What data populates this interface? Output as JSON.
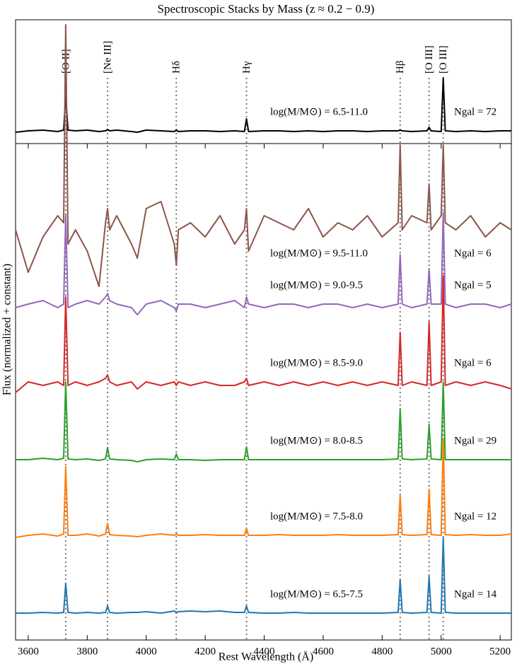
{
  "chart_data": [
    {
      "type": "line",
      "title": "Spectroscopic Stacks by Mass (z ≈ 0.2 − 0.9)",
      "x": [
        3557,
        3600,
        3650,
        3700,
        3720,
        3727,
        3735,
        3760,
        3800,
        3840,
        3862,
        3869,
        3876,
        3900,
        3950,
        3970,
        4000,
        4050,
        4095,
        4102,
        4109,
        4150,
        4200,
        4250,
        4300,
        4333,
        4340,
        4347,
        4400,
        4450,
        4500,
        4550,
        4600,
        4650,
        4700,
        4750,
        4800,
        4854,
        4861,
        4868,
        4900,
        4952,
        4959,
        4966,
        5000,
        5007,
        5014,
        5050,
        5100,
        5150,
        5200,
        5238
      ],
      "xlim": [
        3557,
        5238
      ],
      "ylim": [
        0,
        17.5
      ],
      "lines": [
        {
          "label": "[O II]",
          "wavelength": 3727
        },
        {
          "label": "[Ne III]",
          "wavelength": 3869
        },
        {
          "label": "Hδ",
          "wavelength": 4102
        },
        {
          "label": "Hγ",
          "wavelength": 4340
        },
        {
          "label": "Hβ",
          "wavelength": 4861
        },
        {
          "label": "[O III]",
          "wavelength": 4959
        },
        {
          "label": "[O III]",
          "wavelength": 5007
        }
      ],
      "series": [
        {
          "name": "log(M/M⊙) = 6.5-11.0",
          "n_label": "Ngal = 72",
          "color": "#000000",
          "values": [
            1.6,
            1.8,
            1.9,
            1.7,
            1.9,
            6.6,
            1.9,
            1.8,
            1.9,
            1.7,
            1.8,
            2.0,
            1.8,
            1.9,
            1.7,
            1.6,
            1.9,
            1.8,
            1.7,
            1.9,
            1.7,
            1.8,
            1.8,
            1.7,
            1.8,
            1.7,
            3.5,
            1.7,
            1.8,
            1.8,
            1.7,
            1.8,
            1.7,
            1.8,
            1.8,
            1.7,
            1.8,
            1.8,
            1.9,
            1.8,
            1.7,
            1.8,
            2.3,
            1.8,
            1.7,
            9.3,
            1.8,
            1.7,
            1.8,
            1.7,
            1.8,
            1.8
          ]
        }
      ]
    },
    {
      "type": "line",
      "xlabel": "Rest Wavelength (Å)",
      "ylabel": "Flux (normalized + constant)",
      "x": [
        3557,
        3600,
        3650,
        3700,
        3720,
        3727,
        3735,
        3760,
        3800,
        3840,
        3862,
        3869,
        3876,
        3900,
        3950,
        3970,
        4000,
        4050,
        4095,
        4102,
        4109,
        4150,
        4200,
        4250,
        4300,
        4333,
        4340,
        4347,
        4400,
        4450,
        4500,
        4550,
        4600,
        4650,
        4700,
        4750,
        4800,
        4854,
        4861,
        4868,
        4900,
        4952,
        4959,
        4966,
        5000,
        5007,
        5014,
        5050,
        5100,
        5150,
        5200,
        5238
      ],
      "xlim": [
        3557,
        5238
      ],
      "ylim": [
        0,
        70.2
      ],
      "xticks": [
        3600,
        3800,
        4000,
        4200,
        4400,
        4600,
        4800,
        5000,
        5200
      ],
      "series": [
        {
          "name": "log(M/M⊙) = 9.5-11.0",
          "n_label": "Ngal = 6",
          "color": "#8c564b",
          "values": [
            58,
            52,
            57,
            60,
            59,
            87,
            56,
            58,
            55,
            50,
            59,
            61,
            58,
            60,
            56,
            54,
            61,
            62,
            56,
            53,
            58,
            59,
            57,
            60,
            56,
            58,
            61,
            55,
            60,
            59,
            58,
            61,
            57,
            59,
            58,
            60,
            57,
            59,
            70,
            58,
            60,
            59,
            64.5,
            58,
            60,
            70,
            59,
            58,
            60,
            57,
            59,
            58
          ]
        },
        {
          "name": "log(M/M⊙) = 9.0-9.5",
          "n_label": "Ngal = 5",
          "color": "#9467bd",
          "values": [
            47,
            47.5,
            48,
            47,
            47.5,
            60,
            47,
            47.5,
            48,
            47.5,
            48.5,
            49,
            48,
            47.5,
            47,
            46,
            47.5,
            48,
            47,
            46.5,
            47.5,
            47.5,
            47,
            47.5,
            48,
            47,
            48.5,
            47.5,
            47,
            47.5,
            47.5,
            47,
            47.5,
            47.5,
            47,
            47.5,
            47,
            47.5,
            54.5,
            47.5,
            47,
            47.5,
            52.5,
            47.5,
            47.5,
            60.5,
            47.5,
            47,
            47.5,
            47.5,
            47,
            47.5
          ]
        },
        {
          "name": "log(M/M⊙) = 8.5-9.0",
          "n_label": "Ngal = 6",
          "color": "#d62728",
          "values": [
            35,
            36.5,
            36,
            36.5,
            36,
            48.5,
            36,
            36.5,
            36,
            36.5,
            37,
            37.5,
            36.5,
            36,
            36.5,
            35.5,
            36.5,
            36,
            36.5,
            36,
            36.5,
            36,
            36.5,
            36,
            36,
            36.5,
            37,
            36,
            36.5,
            36,
            36.5,
            36,
            36.5,
            36,
            36.5,
            36,
            36.5,
            36,
            43.5,
            36,
            36.5,
            36,
            45,
            36,
            36.5,
            51.5,
            36,
            36.5,
            36,
            36.5,
            36,
            35.5
          ]
        },
        {
          "name": "log(M/M⊙) = 8.0-8.5",
          "n_label": "Ngal = 29",
          "color": "#2ca02c",
          "values": [
            25.5,
            25.5,
            25.7,
            25.5,
            25.7,
            36.5,
            25.6,
            25.5,
            25.6,
            25.4,
            25.6,
            27.2,
            25.6,
            25.5,
            25.4,
            25.2,
            25.5,
            25.6,
            25.5,
            26.3,
            25.5,
            25.5,
            25.4,
            25.5,
            25.5,
            25.5,
            27.3,
            25.5,
            25.5,
            25.5,
            25.5,
            25.5,
            25.5,
            25.5,
            25.5,
            25.5,
            25.5,
            25.6,
            32.7,
            25.6,
            25.5,
            25.6,
            30.5,
            25.6,
            25.5,
            36.5,
            25.5,
            25.5,
            25.5,
            25.5,
            25.5,
            25.5
          ]
        },
        {
          "name": "log(M/M⊙) = 7.5-8.0",
          "n_label": "Ngal = 12",
          "color": "#ff7f0e",
          "values": [
            14.5,
            14.8,
            15,
            14.7,
            15,
            24.5,
            14.8,
            14.8,
            15,
            14.7,
            15,
            16.5,
            14.9,
            14.8,
            14.7,
            14.6,
            14.8,
            15,
            14.8,
            15,
            14.8,
            14.8,
            14.9,
            14.8,
            14.8,
            14.8,
            15.8,
            14.8,
            14.8,
            14.9,
            14.8,
            14.8,
            14.8,
            14.9,
            14.8,
            14.8,
            14.8,
            14.9,
            20.5,
            14.9,
            14.8,
            14.9,
            21.3,
            14.9,
            14.8,
            28.5,
            14.9,
            14.8,
            14.9,
            14.8,
            14.8,
            15
          ]
        },
        {
          "name": "log(M/M⊙) = 6.5-7.5",
          "n_label": "Ngal = 14",
          "color": "#1f77b4",
          "values": [
            3.8,
            3.8,
            3.9,
            3.8,
            3.9,
            8,
            3.9,
            3.8,
            3.9,
            3.8,
            3.9,
            4.8,
            3.9,
            3.8,
            3.9,
            3.9,
            4,
            3.8,
            4.1,
            3.9,
            4,
            4.1,
            4,
            4.1,
            3.9,
            3.9,
            4.8,
            3.9,
            3.8,
            3.8,
            3.9,
            3.8,
            3.8,
            3.8,
            3.8,
            3.8,
            3.8,
            3.9,
            8.5,
            3.9,
            3.8,
            3.9,
            9,
            3.9,
            3.8,
            14.5,
            3.9,
            3.8,
            3.8,
            3.8,
            3.8,
            3.8
          ]
        }
      ]
    }
  ]
}
